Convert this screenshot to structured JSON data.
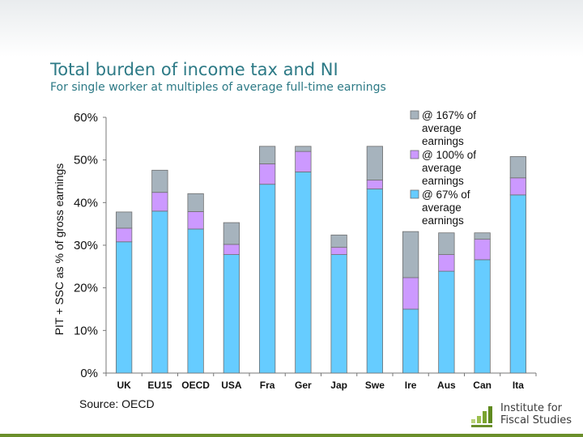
{
  "slide": {
    "title": "Total burden of income tax and NI",
    "subtitle": "For single worker at multiples of average full-time earnings",
    "source": "Source: OECD",
    "logo_line1": "Institute for",
    "logo_line2": "Fiscal Studies"
  },
  "colors": {
    "s67": "#66ccff",
    "s100": "#cc99ff",
    "s167": "#a6b3bd",
    "title": "#2d7a86",
    "logo_green": "#7aa32e"
  },
  "chart_data": {
    "type": "bar",
    "stacked_cumulative": true,
    "categories": [
      "UK",
      "EU15",
      "OECD",
      "USA",
      "Fra",
      "Ger",
      "Jap",
      "Swe",
      "Ire",
      "Aus",
      "Can",
      "Ita"
    ],
    "series": [
      {
        "name": "@ 67% of average earnings",
        "values": [
          30.8,
          38.0,
          33.8,
          27.8,
          44.3,
          47.2,
          27.8,
          43.2,
          15.0,
          23.9,
          26.6,
          41.8
        ]
      },
      {
        "name": "@ 100% of average earnings",
        "values": [
          34.0,
          42.4,
          37.9,
          30.2,
          49.1,
          52.0,
          29.5,
          45.3,
          22.4,
          27.8,
          31.4,
          45.8
        ]
      },
      {
        "name": "@ 167% of average earnings",
        "values": [
          37.8,
          47.6,
          42.1,
          35.3,
          53.2,
          53.2,
          32.4,
          53.2,
          33.2,
          32.9,
          32.9,
          50.8
        ]
      }
    ],
    "legend_labels": [
      [
        "@ 167% of",
        "average",
        "earnings"
      ],
      [
        "@ 100% of",
        "average",
        "earnings"
      ],
      [
        "@ 67% of",
        "average",
        "earnings"
      ]
    ],
    "ylabel": "PIT + SSC as % of gross earnings",
    "xlabel": "",
    "ylim": [
      0,
      60
    ],
    "yticks": [
      "0%",
      "10%",
      "20%",
      "30%",
      "40%",
      "50%",
      "60%"
    ],
    "grid": false,
    "legend_position": "top-right"
  }
}
